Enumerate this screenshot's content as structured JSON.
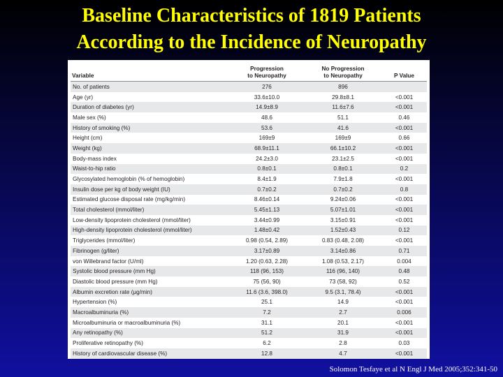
{
  "slide": {
    "title_line1": "Baseline Characteristics of 1819 Patients",
    "title_line2": "According to the Incidence of Neuropathy",
    "citation": "Solomon Tesfaye et al N Engl J Med 2005;352:341-50"
  },
  "colors": {
    "title": "#ffff00",
    "background_top": "#000000",
    "background_bottom": "#1010a0",
    "row_stripe": "#e7e8ea"
  },
  "table": {
    "headers": {
      "variable": "Variable",
      "progression": "Progression\nto Neuropathy",
      "no_progression": "No Progression\nto Neuropathy",
      "p_value": "P Value"
    },
    "rows": [
      {
        "variable": "No. of patients",
        "progression": "276",
        "no_progression": "896",
        "p": ""
      },
      {
        "variable": "Age (yr)",
        "progression": "33.6±10.0",
        "no_progression": "29.8±8.1",
        "p": "<0.001"
      },
      {
        "variable": "Duration of diabetes (yr)",
        "progression": "14.9±8.9",
        "no_progression": "11.6±7.6",
        "p": "<0.001"
      },
      {
        "variable": "Male sex (%)",
        "progression": "48.6",
        "no_progression": "51.1",
        "p": "0.46"
      },
      {
        "variable": "History of smoking (%)",
        "progression": "53.6",
        "no_progression": "41.6",
        "p": "<0.001"
      },
      {
        "variable": "Height (cm)",
        "progression": "169±9",
        "no_progression": "169±9",
        "p": "0.66"
      },
      {
        "variable": "Weight (kg)",
        "progression": "68.9±11.1",
        "no_progression": "66.1±10.2",
        "p": "<0.001"
      },
      {
        "variable": "Body-mass index",
        "progression": "24.2±3.0",
        "no_progression": "23.1±2.5",
        "p": "<0.001"
      },
      {
        "variable": "Waist-to-hip ratio",
        "progression": "0.8±0.1",
        "no_progression": "0.8±0.1",
        "p": "0.2"
      },
      {
        "variable": "Glycosylated hemoglobin (% of hemoglobin)",
        "progression": "8.4±1.9",
        "no_progression": "7.9±1.8",
        "p": "<0.001"
      },
      {
        "variable": "Insulin dose per kg of body weight (IU)",
        "progression": "0.7±0.2",
        "no_progression": "0.7±0.2",
        "p": "0.8"
      },
      {
        "variable": "Estimated glucose disposal rate (mg/kg/min)",
        "progression": "8.46±0.14",
        "no_progression": "9.24±0.06",
        "p": "<0.001"
      },
      {
        "variable": "Total cholesterol (mmol/liter)",
        "progression": "5.45±1.13",
        "no_progression": "5.07±1.01",
        "p": "<0.001"
      },
      {
        "variable": "Low-density lipoprotein cholesterol (mmol/liter)",
        "progression": "3.44±0.99",
        "no_progression": "3.15±0.91",
        "p": "<0.001"
      },
      {
        "variable": "High-density lipoprotein cholesterol (mmol/liter)",
        "progression": "1.48±0.42",
        "no_progression": "1.52±0.43",
        "p": "0.12"
      },
      {
        "variable": "Triglycerides (mmol/liter)",
        "progression": "0.98 (0.54, 2.89)",
        "no_progression": "0.83 (0.48, 2.08)",
        "p": "<0.001"
      },
      {
        "variable": "Fibrinogen (g/liter)",
        "progression": "3.17±0.89",
        "no_progression": "3.14±0.86",
        "p": "0.71"
      },
      {
        "variable": "von Willebrand factor (U/ml)",
        "progression": "1.20 (0.63, 2.28)",
        "no_progression": "1.08 (0.53, 2.17)",
        "p": "0.004"
      },
      {
        "variable": "Systolic blood pressure (mm Hg)",
        "progression": "118 (96, 153)",
        "no_progression": "116 (96, 140)",
        "p": "0.48"
      },
      {
        "variable": "Diastolic blood pressure (mm Hg)",
        "progression": "75 (56, 90)",
        "no_progression": "73 (58, 92)",
        "p": "0.52"
      },
      {
        "variable": "Albumin excretion rate (μg/min)",
        "progression": "11.6 (3.6, 398.0)",
        "no_progression": "9.5 (3.1, 78.4)",
        "p": "<0.001"
      },
      {
        "variable": "Hypertension (%)",
        "progression": "25.1",
        "no_progression": "14.9",
        "p": "<0.001"
      },
      {
        "variable": "Macroalbuminuria (%)",
        "progression": "7.2",
        "no_progression": "2.7",
        "p": "0.006"
      },
      {
        "variable": "Microalbuminuria or macroalbuminuria (%)",
        "progression": "31.1",
        "no_progression": "20.1",
        "p": "<0.001"
      },
      {
        "variable": "Any retinopathy (%)",
        "progression": "51.2",
        "no_progression": "31.9",
        "p": "<0.001"
      },
      {
        "variable": "Proliferative retinopathy (%)",
        "progression": "6.2",
        "no_progression": "2.8",
        "p": "0.03"
      },
      {
        "variable": "History of cardiovascular disease (%)",
        "progression": "12.8",
        "no_progression": "4.7",
        "p": "<0.001"
      }
    ]
  }
}
